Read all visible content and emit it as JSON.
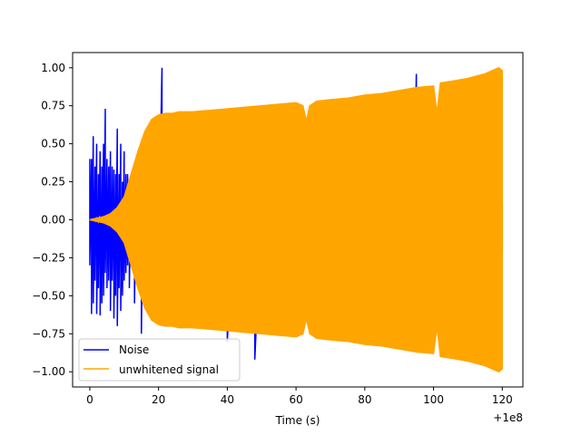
{
  "chart_data": {
    "type": "line",
    "title": "",
    "xlabel": "Time (s)",
    "ylabel": "",
    "x_offset_label": "+1e8",
    "xlim": [
      -5,
      126
    ],
    "ylim": [
      -1.1,
      1.1
    ],
    "x_ticks": [
      0,
      20,
      40,
      60,
      80,
      100,
      120
    ],
    "y_ticks": [
      -1.0,
      -0.75,
      -0.5,
      -0.25,
      0.0,
      0.25,
      0.5,
      0.75,
      1.0
    ],
    "x_tick_labels": [
      "0",
      "20",
      "40",
      "60",
      "80",
      "100",
      "120"
    ],
    "y_tick_labels": [
      "−1.00",
      "−0.75",
      "−0.50",
      "−0.25",
      "0.00",
      "0.25",
      "0.50",
      "0.75",
      "1.00"
    ],
    "grid": false,
    "legend_position": "lower-left",
    "series": [
      {
        "name": "Noise",
        "color": "#0000ff",
        "x": [
          0,
          0.5,
          1,
          1.5,
          2,
          2.5,
          3,
          3.5,
          4,
          4.5,
          5,
          5.5,
          6,
          6.5,
          7,
          7.5,
          8,
          8.5,
          9,
          9.5,
          10,
          10.5,
          11,
          11.5,
          12,
          12.5,
          13,
          13.5,
          14,
          14.5,
          15,
          15.5,
          16,
          16.5,
          17,
          17.5,
          18,
          18.5,
          19,
          19.5,
          20,
          21,
          22,
          24,
          26,
          28,
          30,
          32,
          34,
          36,
          38,
          40,
          42,
          44,
          46,
          48,
          50,
          52,
          54,
          56,
          58,
          60,
          62,
          64,
          66,
          68,
          70,
          72,
          74,
          76,
          78,
          80,
          82,
          84,
          86,
          88,
          90,
          92,
          94,
          95,
          96,
          98,
          100,
          102,
          104,
          106,
          108,
          110,
          112,
          114,
          116,
          118,
          120
        ],
        "upper": [
          0.4,
          0.4,
          0.55,
          0.35,
          0.5,
          0.3,
          0.45,
          0.35,
          0.5,
          0.73,
          0.4,
          0.35,
          0.45,
          0.35,
          0.33,
          0.3,
          0.6,
          0.3,
          0.5,
          0.25,
          0.45,
          0.3,
          0.3,
          0.22,
          0.25,
          0.2,
          0.22,
          0.2,
          0.2,
          0.15,
          0.14,
          0.12,
          0.12,
          0.1,
          0.1,
          0.1,
          0.08,
          0.08,
          0.08,
          0.08,
          0.08,
          1.0,
          0.1,
          0.1,
          0.1,
          0.1,
          0.1,
          0.1,
          0.1,
          0.1,
          0.1,
          0.1,
          0.1,
          0.1,
          0.1,
          0.1,
          0.1,
          0.1,
          0.1,
          0.1,
          0.1,
          0.1,
          0.1,
          0.1,
          0.1,
          0.1,
          0.1,
          0.1,
          0.1,
          0.1,
          0.1,
          0.1,
          0.1,
          0.1,
          0.1,
          0.1,
          0.1,
          0.1,
          0.1,
          0.96,
          0.1,
          0.1,
          0.1,
          0.1,
          0.1,
          0.1,
          0.1,
          0.1,
          0.1,
          0.1,
          0.1,
          0.1,
          0.1
        ],
        "lower": [
          -0.3,
          -0.62,
          -0.55,
          -0.4,
          -0.62,
          -0.45,
          -0.63,
          -0.55,
          -0.5,
          -0.35,
          -0.45,
          -0.4,
          -0.6,
          -0.4,
          -0.65,
          -0.5,
          -0.7,
          -0.45,
          -0.6,
          -0.5,
          -0.4,
          -0.35,
          -0.3,
          -0.45,
          -0.3,
          -0.3,
          -0.55,
          -0.3,
          -0.4,
          -0.3,
          -0.75,
          -0.25,
          -0.25,
          -0.2,
          -0.2,
          -0.2,
          -0.2,
          -0.2,
          -0.2,
          -0.2,
          -0.2,
          -0.2,
          -0.2,
          -0.2,
          -0.2,
          -0.2,
          -0.2,
          -0.2,
          -0.2,
          -0.2,
          -0.2,
          -0.8,
          -0.2,
          -0.2,
          -0.2,
          -0.92,
          -0.2,
          -0.2,
          -0.2,
          -0.2,
          -0.2,
          -0.2,
          -0.2,
          -0.2,
          -0.2,
          -0.2,
          -0.2,
          -0.2,
          -0.2,
          -0.8,
          -0.2,
          -0.2,
          -0.2,
          -0.2,
          -0.2,
          -0.2,
          -0.2,
          -0.2,
          -0.2,
          -0.2,
          -0.2,
          -0.2,
          -0.2,
          -0.2,
          -0.2,
          -0.2,
          -0.2,
          -0.2,
          -0.2,
          -0.2,
          -0.2,
          -0.2,
          -0.2
        ]
      },
      {
        "name": "unwhitened signal",
        "color": "#ffa500",
        "x": [
          0,
          2,
          4,
          6,
          8,
          10,
          12,
          14,
          16,
          18,
          20,
          22,
          24,
          26,
          28,
          30,
          35,
          40,
          45,
          50,
          55,
          60,
          62,
          63,
          64,
          66,
          70,
          75,
          80,
          85,
          90,
          95,
          100,
          101,
          102,
          105,
          110,
          115,
          119,
          120
        ],
        "amplitude": [
          0.0,
          0.01,
          0.02,
          0.04,
          0.08,
          0.15,
          0.3,
          0.45,
          0.58,
          0.66,
          0.69,
          0.7,
          0.7,
          0.71,
          0.71,
          0.71,
          0.72,
          0.73,
          0.74,
          0.75,
          0.76,
          0.77,
          0.75,
          0.65,
          0.75,
          0.78,
          0.79,
          0.8,
          0.82,
          0.83,
          0.85,
          0.87,
          0.88,
          0.7,
          0.9,
          0.91,
          0.93,
          0.96,
          1.0,
          0.98
        ]
      }
    ]
  }
}
